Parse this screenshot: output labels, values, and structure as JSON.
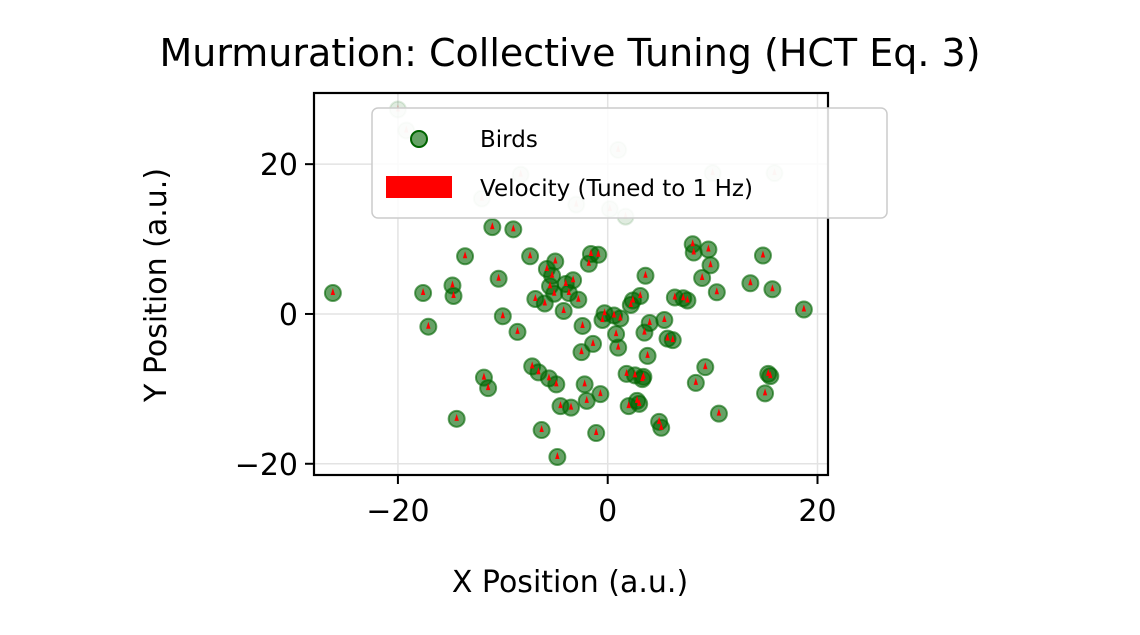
{
  "chart_data": {
    "type": "scatter",
    "title": "Murmuration: Collective Tuning (HCT Eq. 3)",
    "xlabel": "X Position (a.u.)",
    "ylabel": "Y Position (a.u.)",
    "xlim": [
      -28,
      21
    ],
    "ylim": [
      -21.5,
      29.5
    ],
    "xticks": [
      -20,
      0,
      20
    ],
    "yticks": [
      -20,
      0,
      20
    ],
    "xtick_labels": [
      "−20",
      "0",
      "20"
    ],
    "ytick_labels": [
      "−20",
      "0",
      "20"
    ],
    "grid": true,
    "legend_position": "upper center",
    "colors": {
      "birds": "#006400",
      "velocity": "#ff0000"
    },
    "series": [
      {
        "name": "Birds",
        "kind": "scatter",
        "x": [
          -26.2,
          -20.0,
          -19.2,
          -17.6,
          -17.1,
          -14.8,
          -14.7,
          -14.4,
          -13.6,
          -12.0,
          -11.8,
          -11.4,
          -11.0,
          -10.4,
          -10.0,
          -9.0,
          -8.6,
          -8.3,
          -7.4,
          -7.2,
          -6.9,
          -6.6,
          -6.3,
          -6.0,
          -5.8,
          -5.6,
          -5.5,
          -5.3,
          -5.1,
          -5.0,
          -4.9,
          -4.8,
          -4.5,
          -4.2,
          -4.0,
          -3.7,
          -3.5,
          -3.3,
          -3.0,
          -2.8,
          -2.5,
          -2.4,
          -2.2,
          -2.0,
          -1.8,
          -1.6,
          -1.4,
          -1.1,
          -0.9,
          -0.7,
          -0.5,
          -0.3,
          0.2,
          0.6,
          0.8,
          1.0,
          1.0,
          1.2,
          1.7,
          1.8,
          2.0,
          2.2,
          2.4,
          2.6,
          2.8,
          3.0,
          3.1,
          3.3,
          3.4,
          3.5,
          3.6,
          3.8,
          4.0,
          4.9,
          5.1,
          5.4,
          5.7,
          6.2,
          6.4,
          7.2,
          7.6,
          8.1,
          8.2,
          8.4,
          9.0,
          9.3,
          9.6,
          9.8,
          10.0,
          10.4,
          10.6,
          13.6,
          14.8,
          15.0,
          15.3,
          15.5,
          15.7,
          15.9,
          18.7
        ],
        "y": [
          2.8,
          27.3,
          24.5,
          2.8,
          -1.7,
          3.8,
          2.4,
          -14.0,
          7.7,
          15.4,
          -8.5,
          -9.9,
          11.6,
          4.7,
          -0.3,
          11.3,
          -2.4,
          18.6,
          7.7,
          -7.0,
          2.0,
          -7.8,
          -15.5,
          1.4,
          6.0,
          -8.6,
          3.7,
          5.1,
          2.7,
          7.0,
          -9.4,
          -19.1,
          -12.3,
          0.4,
          4.0,
          2.8,
          -12.5,
          4.5,
          14.6,
          1.9,
          -5.1,
          -1.6,
          -9.4,
          -11.6,
          6.7,
          8.0,
          -4.0,
          -15.9,
          7.9,
          -10.7,
          -0.8,
          0.1,
          14.0,
          -0.2,
          -2.7,
          21.9,
          -4.5,
          -0.6,
          13.0,
          -8.0,
          -12.3,
          1.2,
          1.8,
          -8.2,
          -11.6,
          -12.0,
          2.4,
          -8.7,
          -8.4,
          -2.5,
          5.1,
          -5.6,
          -1.2,
          -14.4,
          -15.2,
          -0.8,
          -3.3,
          -3.5,
          2.2,
          2.1,
          1.8,
          9.3,
          8.2,
          -9.2,
          4.8,
          -7.1,
          8.6,
          6.5,
          18.8,
          2.9,
          -13.3,
          4.1,
          7.8,
          -10.6,
          -8.0,
          -8.3,
          3.3,
          18.8,
          0.6
        ]
      },
      {
        "name": "Velocity (Tuned to 1 Hz)",
        "kind": "quiver"
      }
    ]
  }
}
